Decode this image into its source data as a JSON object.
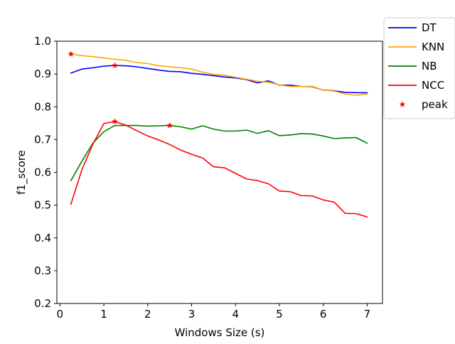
{
  "chart_data": {
    "type": "line",
    "title": "",
    "xlabel": "Windows Size (s)",
    "ylabel": "f1_score",
    "xlim": [
      -0.07,
      7.35
    ],
    "ylim": [
      0.2,
      1.0
    ],
    "x_ticks": [
      0,
      1,
      2,
      3,
      4,
      5,
      6,
      7
    ],
    "y_ticks": [
      0.2,
      0.3,
      0.4,
      0.5,
      0.6,
      0.7,
      0.8,
      0.9,
      1.0
    ],
    "grid": false,
    "legend_position": "outside-top-right",
    "x": [
      0.25,
      0.5,
      0.75,
      1.0,
      1.25,
      1.5,
      1.75,
      2.0,
      2.25,
      2.5,
      2.75,
      3.0,
      3.25,
      3.5,
      3.75,
      4.0,
      4.25,
      4.5,
      4.75,
      5.0,
      5.25,
      5.5,
      5.75,
      6.0,
      6.25,
      6.5,
      6.75,
      7.0
    ],
    "series": [
      {
        "name": "DT",
        "color": "#0000ff",
        "values": [
          0.903,
          0.915,
          0.919,
          0.924,
          0.926,
          0.925,
          0.922,
          0.917,
          0.912,
          0.908,
          0.907,
          0.902,
          0.899,
          0.895,
          0.891,
          0.888,
          0.883,
          0.873,
          0.879,
          0.866,
          0.866,
          0.862,
          0.861,
          0.851,
          0.849,
          0.844,
          0.843,
          0.843
        ]
      },
      {
        "name": "KNN",
        "color": "#ffa500",
        "values": [
          0.961,
          0.956,
          0.953,
          0.949,
          0.945,
          0.942,
          0.935,
          0.932,
          0.925,
          0.922,
          0.919,
          0.915,
          0.906,
          0.899,
          0.896,
          0.89,
          0.884,
          0.878,
          0.875,
          0.867,
          0.862,
          0.862,
          0.862,
          0.851,
          0.848,
          0.839,
          0.835,
          0.839
        ]
      },
      {
        "name": "NB",
        "color": "#008000",
        "values": [
          0.575,
          0.634,
          0.689,
          0.724,
          0.743,
          0.743,
          0.743,
          0.741,
          0.742,
          0.743,
          0.739,
          0.732,
          0.742,
          0.732,
          0.726,
          0.726,
          0.729,
          0.719,
          0.727,
          0.712,
          0.714,
          0.718,
          0.717,
          0.711,
          0.703,
          0.705,
          0.706,
          0.689
        ]
      },
      {
        "name": "NCC",
        "color": "#ff0000",
        "values": [
          0.503,
          0.608,
          0.686,
          0.749,
          0.755,
          0.744,
          0.727,
          0.711,
          0.699,
          0.685,
          0.668,
          0.655,
          0.644,
          0.617,
          0.614,
          0.597,
          0.58,
          0.575,
          0.565,
          0.543,
          0.541,
          0.529,
          0.528,
          0.516,
          0.509,
          0.475,
          0.474,
          0.464
        ]
      }
    ],
    "peaks": {
      "name": "peak",
      "color": "#ff0000",
      "marker": "star",
      "points": [
        {
          "x": 0.25,
          "y": 0.961
        },
        {
          "x": 1.25,
          "y": 0.926
        },
        {
          "x": 1.25,
          "y": 0.755
        },
        {
          "x": 2.5,
          "y": 0.743
        }
      ]
    }
  }
}
